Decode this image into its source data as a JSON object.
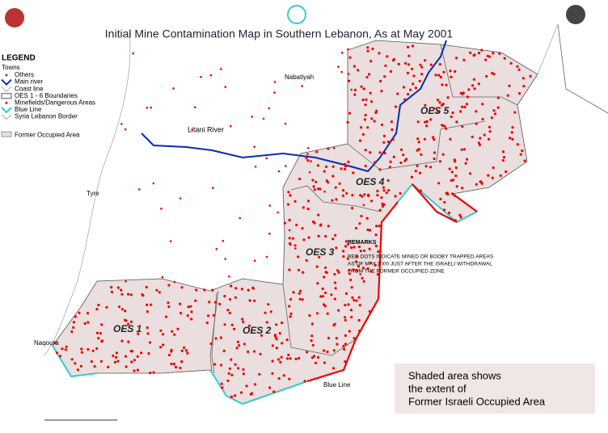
{
  "header": {
    "title": "Initial Mine Contamination Map in Southern Lebanon, As at May 2001"
  },
  "legend": {
    "heading": "LEGEND",
    "subheading": "Towns",
    "items": [
      "Others",
      "Main river",
      "Coast line",
      "OES 1 - 6 Boundaries",
      "Minefields/Dangerous Areas",
      "Blue Line",
      "Syria Lebanon Border",
      "Former Occupied Area"
    ]
  },
  "places": [
    "Nabatiyah",
    "Litani River",
    "Tyre",
    "Naqoura",
    "Blue Line"
  ],
  "zones": [
    "OES 1",
    "OES 2",
    "OES 3",
    "OES 4",
    "OES 5"
  ],
  "remarks": {
    "heading": "REMARKS",
    "lines": [
      "RED DOTS INDICATE MINED OR BOOBY TRAPPED AREAS",
      "AS OF MAY 2000 JUST AFTER THE ISRAELI WITHDRAWAL",
      "FROM THE FORMER OCCUPIED ZONE"
    ]
  },
  "note": {
    "lines": [
      "Shaded area shows",
      "the extent of",
      "Former Israeli Occupied Area"
    ]
  }
}
